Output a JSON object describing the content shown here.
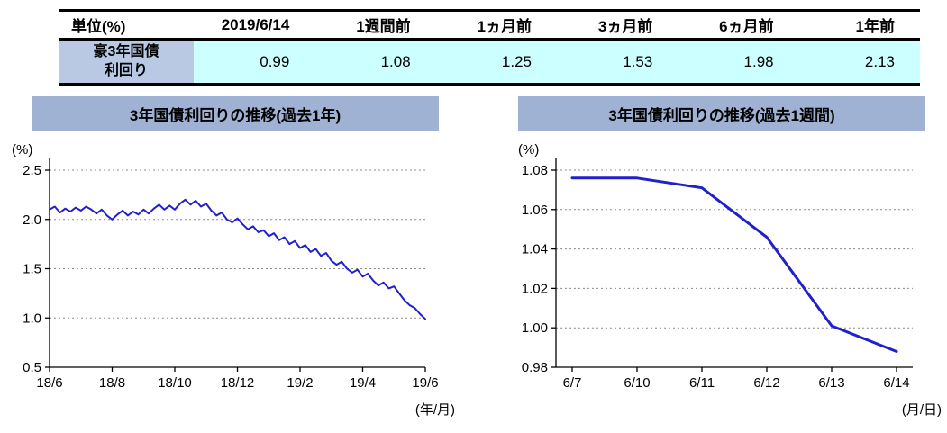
{
  "table": {
    "headers": [
      "単位(%)",
      "2019/6/14",
      "1週間前",
      "1ヵ月前",
      "3ヵ月前",
      "6ヵ月前",
      "1年前"
    ],
    "row_label_line1": "豪3年国債",
    "row_label_line2": "利回り",
    "values": [
      "0.99",
      "1.08",
      "1.25",
      "1.53",
      "1.98",
      "2.13"
    ]
  },
  "colors": {
    "banner": "#9fb2d4",
    "row_label_bg": "#b9c9e3",
    "value_bg": "#ccffff",
    "line": "#2121cc",
    "grid": "#8c8c8c"
  },
  "chart_data": [
    {
      "type": "line",
      "title": "3年国債利回りの推移(過去1年)",
      "ylabel": "(%)",
      "xlabel": "(年/月)",
      "ylim": [
        0.5,
        2.5
      ],
      "yticks": [
        0.5,
        1.0,
        1.5,
        2.0,
        2.5
      ],
      "ytick_labels": [
        "0.5",
        "1.0",
        "1.5",
        "2.0",
        "2.5"
      ],
      "x_range": [
        0,
        12
      ],
      "xtick_positions": [
        0,
        2,
        4,
        6,
        8,
        10,
        12
      ],
      "xtick_labels": [
        "18/6",
        "18/8",
        "18/10",
        "18/12",
        "19/2",
        "19/4",
        "19/6"
      ],
      "grid": "dotted-horizontal",
      "legend": "none",
      "series": [
        {
          "name": "豪3年国債利回り",
          "values": [
            2.1,
            2.13,
            2.07,
            2.11,
            2.08,
            2.12,
            2.09,
            2.13,
            2.1,
            2.06,
            2.1,
            2.04,
            2.0,
            2.05,
            2.09,
            2.04,
            2.08,
            2.05,
            2.1,
            2.06,
            2.11,
            2.15,
            2.1,
            2.14,
            2.1,
            2.16,
            2.2,
            2.15,
            2.19,
            2.13,
            2.16,
            2.09,
            2.04,
            2.07,
            2.0,
            1.97,
            2.01,
            1.95,
            1.9,
            1.93,
            1.87,
            1.89,
            1.83,
            1.86,
            1.79,
            1.82,
            1.75,
            1.78,
            1.71,
            1.74,
            1.67,
            1.7,
            1.63,
            1.66,
            1.58,
            1.54,
            1.57,
            1.5,
            1.46,
            1.49,
            1.42,
            1.45,
            1.38,
            1.33,
            1.36,
            1.3,
            1.32,
            1.25,
            1.18,
            1.13,
            1.1,
            1.04,
            0.99
          ]
        }
      ]
    },
    {
      "type": "line",
      "title": "3年国債利回りの推移(過去1週間)",
      "ylabel": "(%)",
      "xlabel": "(月/日)",
      "ylim": [
        0.98,
        1.08
      ],
      "yticks": [
        0.98,
        1.0,
        1.02,
        1.04,
        1.06,
        1.08
      ],
      "ytick_labels": [
        "0.98",
        "1.00",
        "1.02",
        "1.04",
        "1.06",
        "1.08"
      ],
      "categories": [
        "6/7",
        "6/10",
        "6/11",
        "6/12",
        "6/13",
        "6/14"
      ],
      "grid": "dotted-horizontal",
      "legend": "none",
      "series": [
        {
          "name": "豪3年国債利回り",
          "values": [
            1.076,
            1.076,
            1.071,
            1.046,
            1.001,
            0.988
          ]
        }
      ]
    }
  ]
}
